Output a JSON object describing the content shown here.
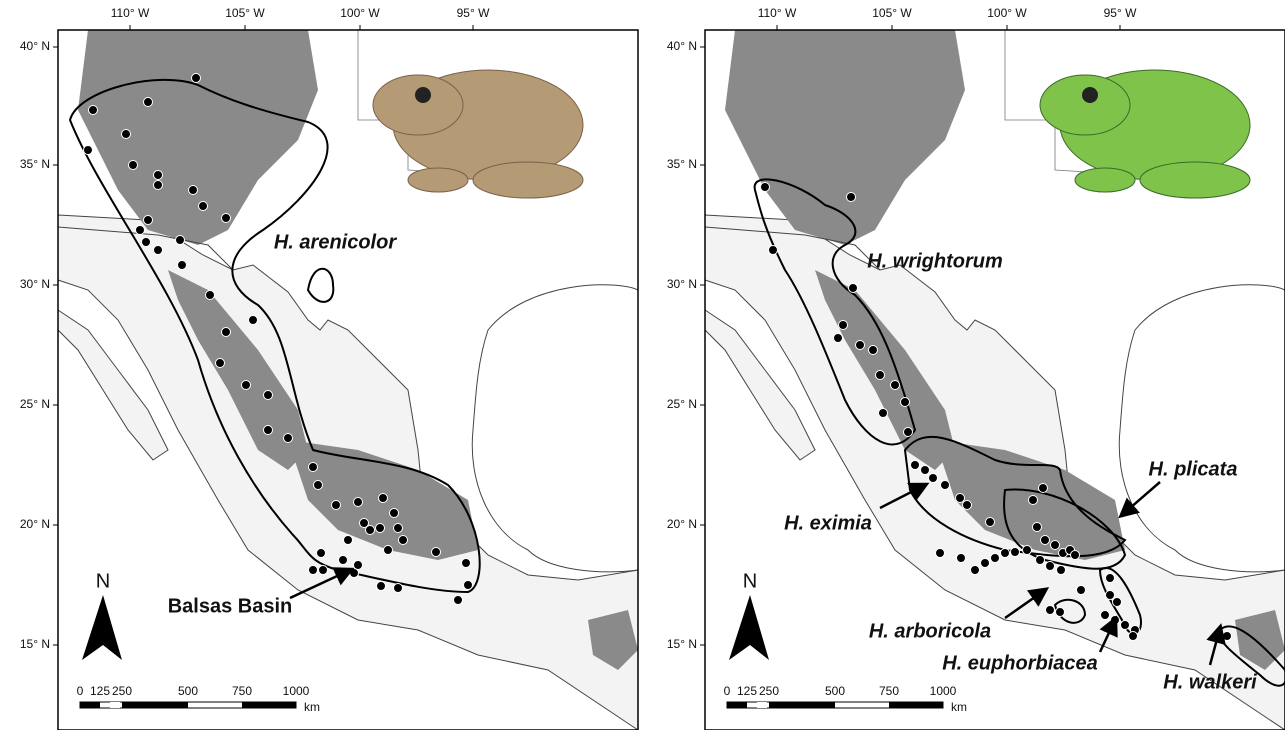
{
  "panels": [
    {
      "lon_labels": [
        "110° W",
        "105° W",
        "100° W",
        "95° W"
      ],
      "lat_labels": [
        "40° N",
        "35° N",
        "30° N",
        "25° N",
        "20° N",
        "15° N"
      ],
      "labels": [
        "H. arenicolor",
        "Balsas Basin"
      ],
      "scale_labels": [
        "0",
        "125",
        "250",
        "500",
        "750",
        "1000"
      ],
      "scale_unit": "km",
      "north": "N"
    },
    {
      "lon_labels": [
        "110° W",
        "105° W",
        "100° W",
        "95° W"
      ],
      "lat_labels": [
        "40° N",
        "35° N",
        "30° N",
        "25° N",
        "20° N",
        "15° N"
      ],
      "labels": [
        "H. wrightorum",
        "H. plicata",
        "H. eximia",
        "H. arboricola",
        "H. euphorbiacea",
        "H. walkeri"
      ],
      "scale_labels": [
        "0",
        "125",
        "250",
        "500",
        "750",
        "1000"
      ],
      "scale_unit": "km",
      "north": "N"
    }
  ]
}
